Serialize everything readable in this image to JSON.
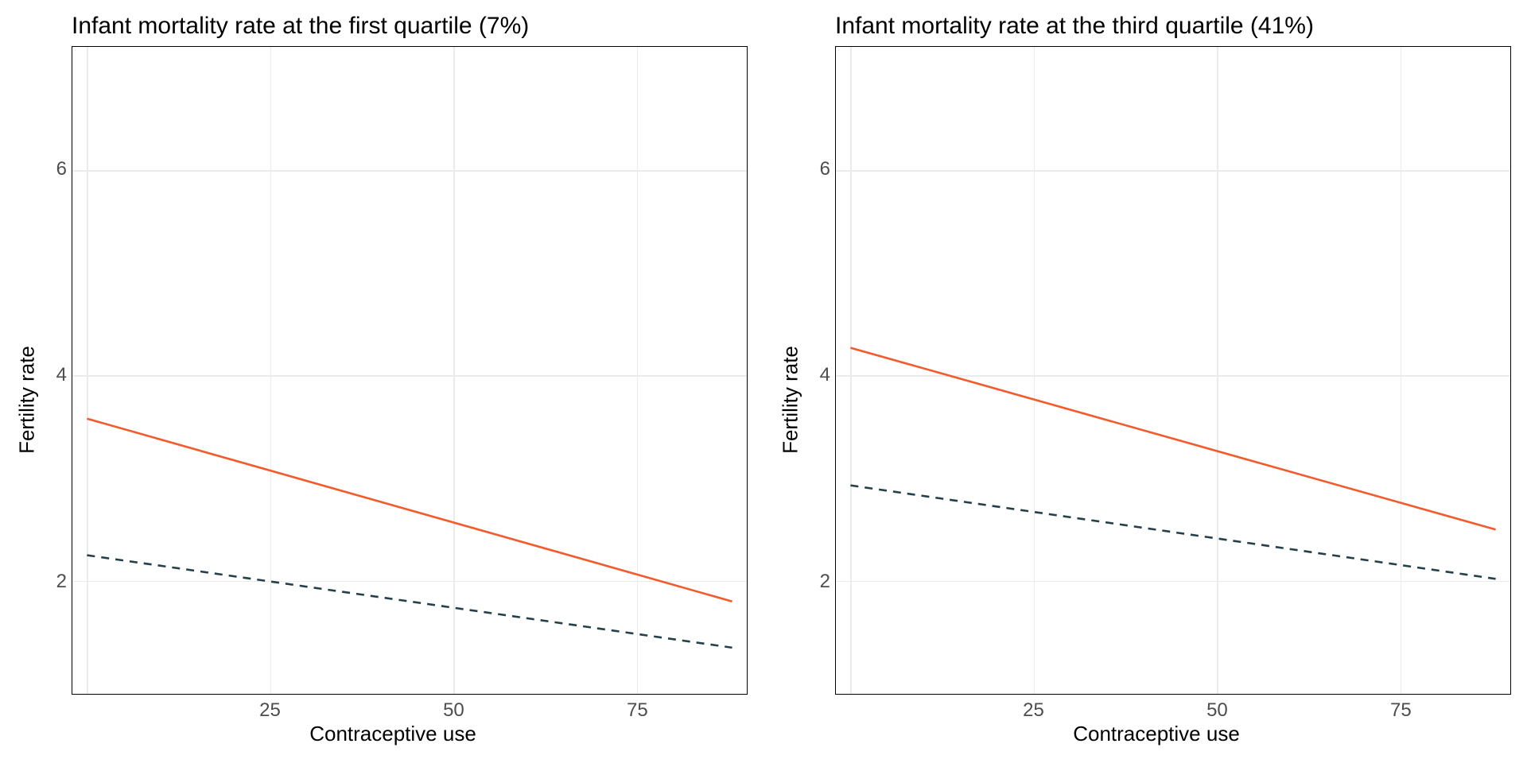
{
  "figure": {
    "background_color": "#ffffff",
    "grid_color": "#ebebeb",
    "border_color": "#000000",
    "tick_label_color": "#4d4d4d",
    "axis_label_color": "#000000",
    "title_color": "#000000",
    "title_fontsize": 30,
    "axis_label_fontsize": 26,
    "tick_label_fontsize": 24
  },
  "panels": [
    {
      "id": "left",
      "type": "line",
      "title": "Infant mortality rate at the first quartile (7%)",
      "xlabel": "Contraceptive use",
      "ylabel": "Fertility rate",
      "xlim": [
        -2,
        90
      ],
      "ylim": [
        0.9,
        7.2
      ],
      "xticks": [
        25,
        50,
        75
      ],
      "yticks": [
        2,
        4,
        6
      ],
      "grid_x": [
        0,
        25,
        50,
        75
      ],
      "grid_y": [
        2,
        4,
        6
      ],
      "series": [
        {
          "name": "series-solid",
          "color": "#f35b2c",
          "dash": "solid",
          "width": 2.6,
          "points": [
            {
              "x": 0,
              "y": 3.58
            },
            {
              "x": 88,
              "y": 1.8
            }
          ]
        },
        {
          "name": "series-dashed",
          "color": "#24414a",
          "dash": "10,8",
          "width": 2.6,
          "points": [
            {
              "x": 0,
              "y": 2.25
            },
            {
              "x": 88,
              "y": 1.35
            }
          ]
        }
      ]
    },
    {
      "id": "right",
      "type": "line",
      "title": "Infant mortality rate at the third quartile (41%)",
      "xlabel": "Contraceptive use",
      "ylabel": "Fertility rate",
      "xlim": [
        -2,
        90
      ],
      "ylim": [
        0.9,
        7.2
      ],
      "xticks": [
        25,
        50,
        75
      ],
      "yticks": [
        2,
        4,
        6
      ],
      "grid_x": [
        0,
        25,
        50,
        75
      ],
      "grid_y": [
        2,
        4,
        6
      ],
      "series": [
        {
          "name": "series-solid",
          "color": "#f35b2c",
          "dash": "solid",
          "width": 2.6,
          "points": [
            {
              "x": 0,
              "y": 4.27
            },
            {
              "x": 88,
              "y": 2.5
            }
          ]
        },
        {
          "name": "series-dashed",
          "color": "#24414a",
          "dash": "10,8",
          "width": 2.6,
          "points": [
            {
              "x": 0,
              "y": 2.93
            },
            {
              "x": 88,
              "y": 2.02
            }
          ]
        }
      ]
    }
  ]
}
